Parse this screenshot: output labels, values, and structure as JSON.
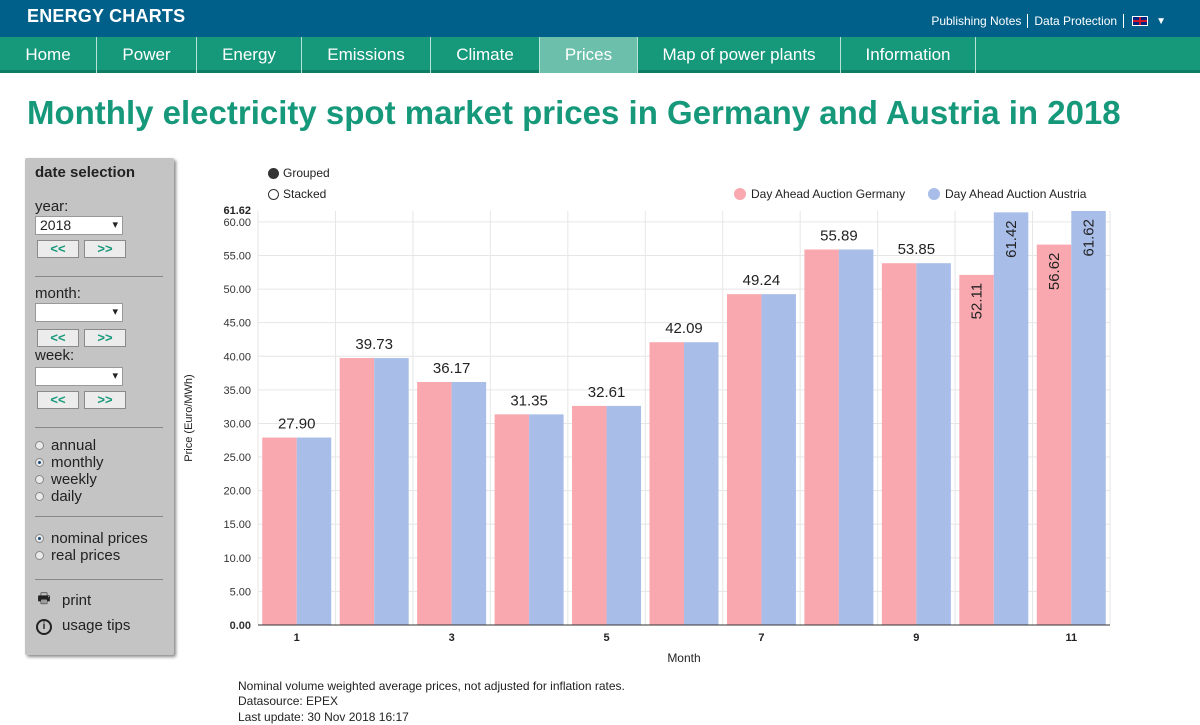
{
  "header": {
    "brand": "ENERGY CHARTS",
    "links": [
      "Publishing Notes",
      "Data Protection"
    ],
    "language_icon": "uk-flag-icon"
  },
  "nav": {
    "items": [
      {
        "label": "Home",
        "active": false
      },
      {
        "label": "Power",
        "active": false
      },
      {
        "label": "Energy",
        "active": false
      },
      {
        "label": "Emissions",
        "active": false
      },
      {
        "label": "Climate",
        "active": false
      },
      {
        "label": "Prices",
        "active": true
      },
      {
        "label": "Map of power plants",
        "active": false
      },
      {
        "label": "Information",
        "active": false
      }
    ]
  },
  "page_title": "Monthly electricity spot market prices in Germany and Austria in 2018",
  "sidebar": {
    "heading": "date selection",
    "year_label": "year:",
    "year_value": "2018",
    "month_label": "month:",
    "month_value": "",
    "week_label": "week:",
    "week_value": "",
    "prev_label": "<<",
    "next_label": ">>",
    "period_options": [
      {
        "label": "annual",
        "selected": false
      },
      {
        "label": "monthly",
        "selected": true
      },
      {
        "label": "weekly",
        "selected": false
      },
      {
        "label": "daily",
        "selected": false
      }
    ],
    "price_options": [
      {
        "label": "nominal prices",
        "selected": true
      },
      {
        "label": "real prices",
        "selected": false
      }
    ],
    "print_label": "print",
    "tips_label": "usage tips"
  },
  "chart_controls": {
    "grouped_label": "Grouped",
    "stacked_label": "Stacked",
    "selected": "Grouped"
  },
  "chart_data": {
    "type": "bar",
    "title": "",
    "xlabel": "Month",
    "ylabel": "Price (Euro/MWh)",
    "ylim": [
      0,
      61.62
    ],
    "y_max_label": "61.62",
    "y_ticks": [
      "0.00",
      "5.00",
      "10.00",
      "15.00",
      "20.00",
      "25.00",
      "30.00",
      "35.00",
      "40.00",
      "45.00",
      "50.00",
      "55.00",
      "60.00"
    ],
    "categories": [
      1,
      2,
      3,
      4,
      5,
      6,
      7,
      8,
      9,
      10,
      11
    ],
    "x_tick_labels": [
      "1",
      "",
      "3",
      "",
      "5",
      "",
      "7",
      "",
      "9",
      "",
      "11"
    ],
    "grid": true,
    "legend_position": "top-right",
    "series": [
      {
        "name": "Day Ahead Auction Germany",
        "color": "#f8a8ae",
        "values": [
          27.9,
          39.73,
          36.17,
          31.35,
          32.61,
          42.09,
          49.24,
          55.89,
          53.85,
          52.11,
          56.62
        ],
        "labels": [
          "27.90",
          "39.73",
          "36.17",
          "31.35",
          "32.61",
          "42.09",
          "49.24",
          "55.89",
          "53.85",
          "52.11",
          "56.62"
        ]
      },
      {
        "name": "Day Ahead Auction Austria",
        "color": "#a8bde8",
        "values": [
          27.9,
          39.73,
          36.17,
          31.35,
          32.61,
          42.09,
          49.24,
          55.89,
          53.85,
          61.42,
          61.62
        ],
        "labels": [
          "",
          "",
          "",
          "",
          "",
          "",
          "",
          "",
          "",
          "61.42",
          "61.62"
        ]
      }
    ]
  },
  "footnotes": [
    "Nominal volume weighted average prices, not adjusted for inflation rates.",
    "Datasource: EPEX",
    "Last update: 30 Nov 2018 16:17"
  ]
}
